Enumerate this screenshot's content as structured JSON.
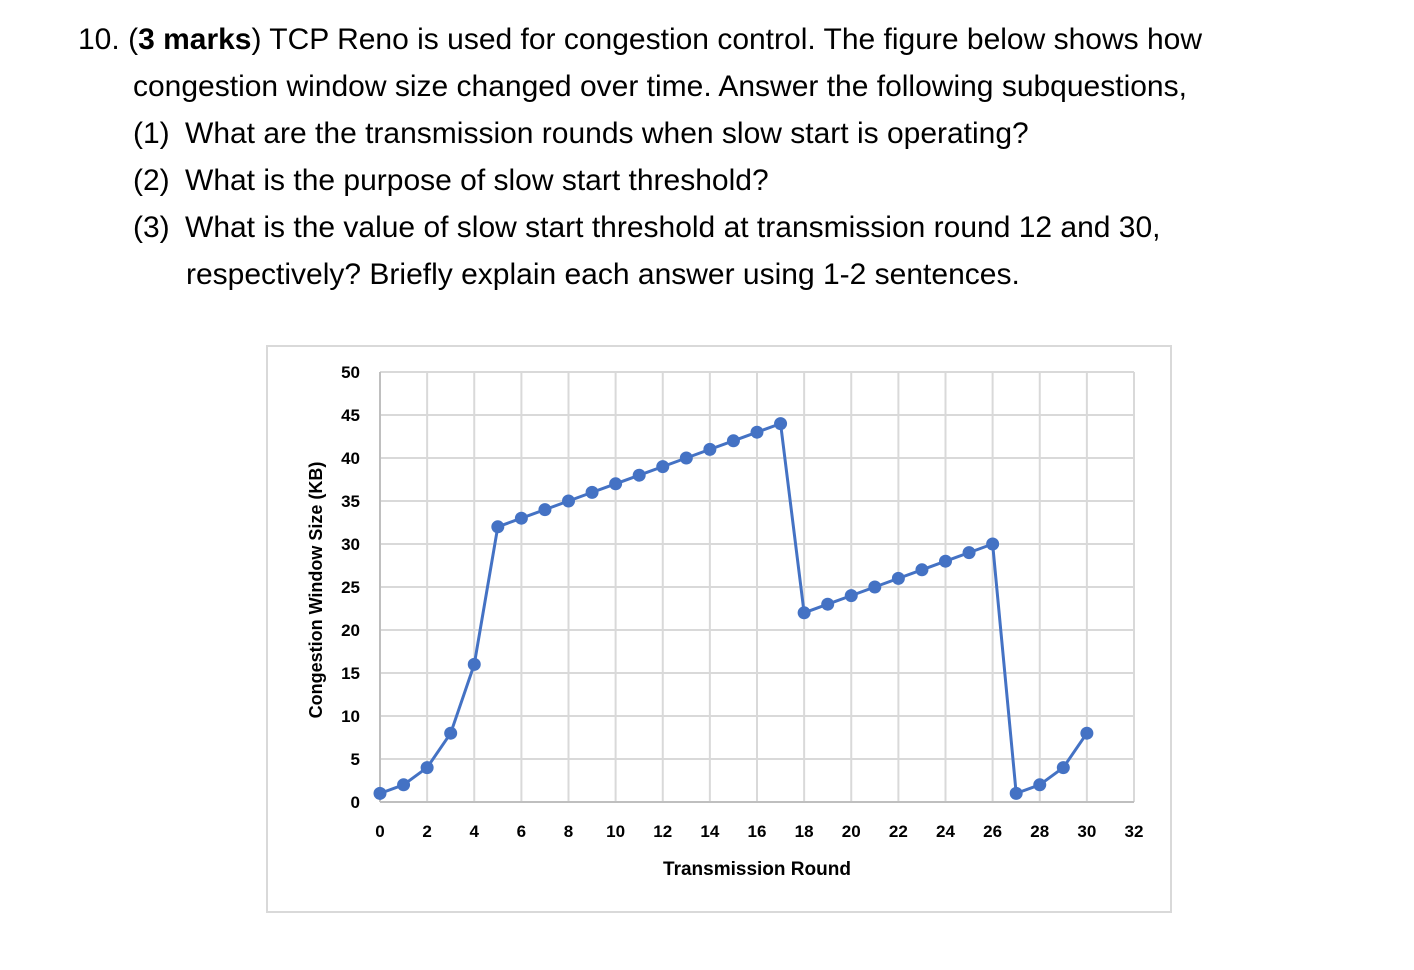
{
  "question": {
    "number": "10.",
    "marks_open": "(",
    "marks": "3 marks",
    "marks_close": ")",
    "intro_rest": " TCP Reno is used for congestion control. The figure below shows how",
    "intro_line2": "congestion window size changed over time. Answer the following subquestions,",
    "subquestions": [
      {
        "label": "(1)",
        "text": "What are the transmission rounds when slow start is operating?"
      },
      {
        "label": "(2)",
        "text": "What is the purpose of slow start threshold?"
      },
      {
        "label": "(3)",
        "text": "What is the value of slow start threshold at transmission round 12 and 30,",
        "continuation": "respectively? Briefly explain each answer using 1-2 sentences."
      }
    ]
  },
  "chart_data": {
    "type": "line",
    "title": "",
    "xlabel": "Transmission Round",
    "ylabel": "Congestion Window Size (KB)",
    "xlim": [
      0,
      32
    ],
    "ylim": [
      0,
      50
    ],
    "x_ticks": [
      0,
      2,
      4,
      6,
      8,
      10,
      12,
      14,
      16,
      18,
      20,
      22,
      24,
      26,
      28,
      30,
      32
    ],
    "y_ticks": [
      0,
      5,
      10,
      15,
      20,
      25,
      30,
      35,
      40,
      45,
      50
    ],
    "grid": true,
    "legend": "none",
    "series": [
      {
        "name": "Congestion Window",
        "color": "#4472C4",
        "marker": "circle",
        "x": [
          0,
          1,
          2,
          3,
          4,
          5,
          6,
          7,
          8,
          9,
          10,
          11,
          12,
          13,
          14,
          15,
          16,
          17,
          18,
          19,
          20,
          21,
          22,
          23,
          24,
          25,
          26,
          27,
          28,
          29,
          30
        ],
        "values": [
          1,
          2,
          4,
          8,
          16,
          32,
          33,
          34,
          35,
          36,
          37,
          38,
          39,
          40,
          41,
          42,
          43,
          44,
          22,
          23,
          24,
          25,
          26,
          27,
          28,
          29,
          30,
          1,
          2,
          4,
          8
        ]
      }
    ]
  }
}
